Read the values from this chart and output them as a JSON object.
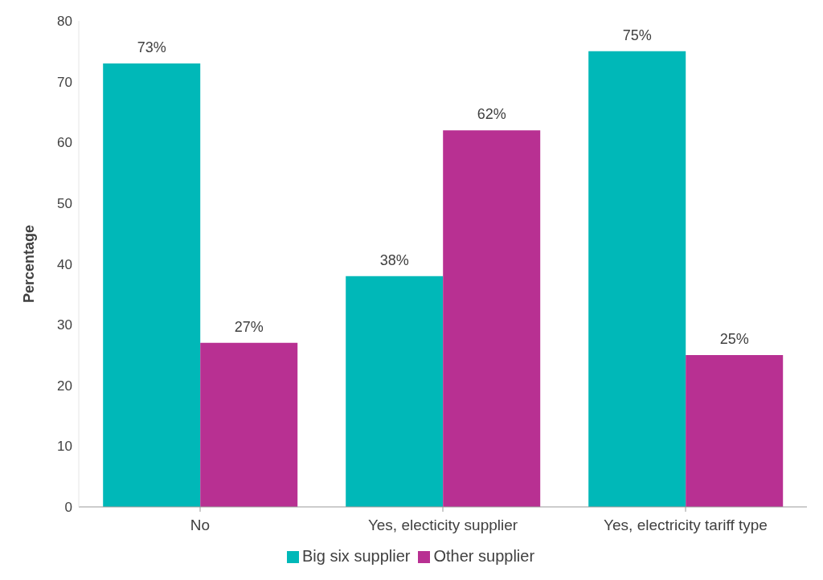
{
  "chart_data": {
    "type": "bar",
    "ylabel": "Percentage",
    "categories": [
      "No",
      "Yes, electicity supplier",
      "Yes, electricity tariff type"
    ],
    "series": [
      {
        "name": "Big six supplier",
        "color": "#00b8b8",
        "values": [
          73,
          38,
          75
        ],
        "value_labels": [
          "73%",
          "38%",
          "75%"
        ]
      },
      {
        "name": "Other supplier",
        "color": "#b83092",
        "values": [
          27,
          62,
          25
        ],
        "value_labels": [
          "27%",
          "62%",
          "25%"
        ]
      }
    ],
    "ylim": [
      0,
      80
    ],
    "yticks": [
      0,
      10,
      20,
      30,
      40,
      50,
      60,
      70,
      80
    ],
    "grid": false,
    "legend": "bottom"
  }
}
